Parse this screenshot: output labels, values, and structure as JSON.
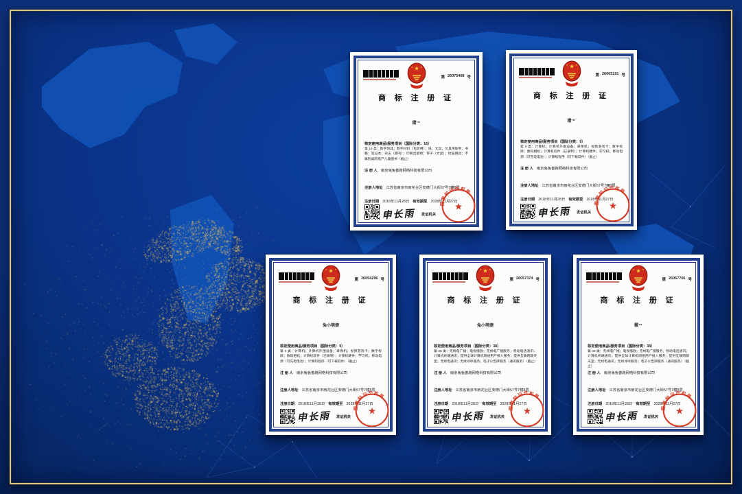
{
  "labels": {
    "number_prefix": "第",
    "number_suffix": "号",
    "title": "商 标 注 册 证",
    "registrant_label": "注 册 人",
    "address_label": "注册人地址",
    "reg_date_label": "注册日期",
    "valid_until_label": "有效期至",
    "director_label": "局　长",
    "issuer_label": "发证机关",
    "signature": "申长雨",
    "seal_text": "国家知识产权局"
  },
  "certificates": [
    {
      "number": "26075408",
      "mark": "稷™",
      "class_line": "核定使用商品/服务项目（国际分类：16）",
      "goods": "第 16 类：数字刻具；数字材料（包装用）；纸；文具；文具用胶带；书籍；笔记本；杂志（期刊）；印刷出版物；带子（文具）；绘画用具；不属别类的纸产儿童图书（截止）",
      "registrant": "南京兔兔善跑网络科技有限公司",
      "address": "江苏省南京市雨花台区安德门大街57号7幢8层",
      "reg_date": "2018年11月28日",
      "valid_until": "2028年11月27日"
    },
    {
      "number": "26063191",
      "mark": "稷™",
      "class_line": "核定使用商品/服务项目（国际分类：9）",
      "goods": "第 9 类：计算机；计算机外围设备；录像机；视频游戏卡；数字标牌；数码相机；计算机软件（已录制）；计算机硬件；学习机；移动电源（可充电电池）；计算机程序（可下载软件）（截止）",
      "registrant": "南京兔兔善跑网络科技有限公司",
      "address": "江苏省南京市雨花台区安德门大街57号7幢8层",
      "reg_date": "2018年11月28日",
      "valid_until": "2028年11月27日"
    },
    {
      "number": "26054296",
      "mark": "兔小萌捷",
      "class_line": "核定使用商品/服务项目（国际分类：9）",
      "goods": "第 9 类：计算机；计算机外围设备；录像机；视频游戏卡；数字标牌；数码相机；计算机软件（已录制）；计算机硬件；学习机；移动电源（可充电电池）；计算机程序（可下载软件）（截止）",
      "registrant": "南京兔兔善跑网络科技有限公司",
      "address": "江苏省南京市雨花台区安德门大街57号7幢8层",
      "reg_date": "2018年11月28日",
      "valid_until": "2028年11月27日"
    },
    {
      "number": "26057374",
      "mark": "兔小萌捷",
      "class_line": "核定使用商品/服务项目（国际分类：38）",
      "goods": "第 38 类：无线电广播；电视播放；无线电广播服务；移动电话通讯；计算机终端通讯；提供全球计算机网络用户接入服务；提供互联网聊天室；无线电通讯；无线寻呼服务；电子公告牌服务（通讯服务）（截止）",
      "registrant": "南京兔兔善跑网络科技有限公司",
      "address": "江苏省南京市雨花台区安德门大街57号7幢8层",
      "reg_date": "2018年11月28日",
      "valid_until": "2028年11月27日"
    },
    {
      "number": "26057706",
      "mark": "稷™",
      "class_line": "核定使用商品/服务项目（国际分类：38）",
      "goods": "第 38 类：无线电广播；电视播放；无线电广播服务；移动电话通讯；计算机终端通讯；提供全球计算机网络用户接入服务；提供互联网聊天室；无线电通讯；无线寻呼服务；电子公告牌服务（通讯服务）（截止）",
      "registrant": "南京兔兔善跑网络科技有限公司",
      "address": "江苏省南京市雨花台区安德门大街57号7幢8层",
      "reg_date": "2018年11月28日",
      "valid_until": "2028年11月27日"
    }
  ],
  "colors": {
    "background_blue": "#0a3388",
    "frame_gold": "#d9c78c",
    "certificate_border_navy": "#24418c",
    "emblem_red": "#cf2b1d",
    "seal_red": "#d23b29",
    "particle_gold": "#d8b866",
    "map_blue": "#1253b8"
  }
}
